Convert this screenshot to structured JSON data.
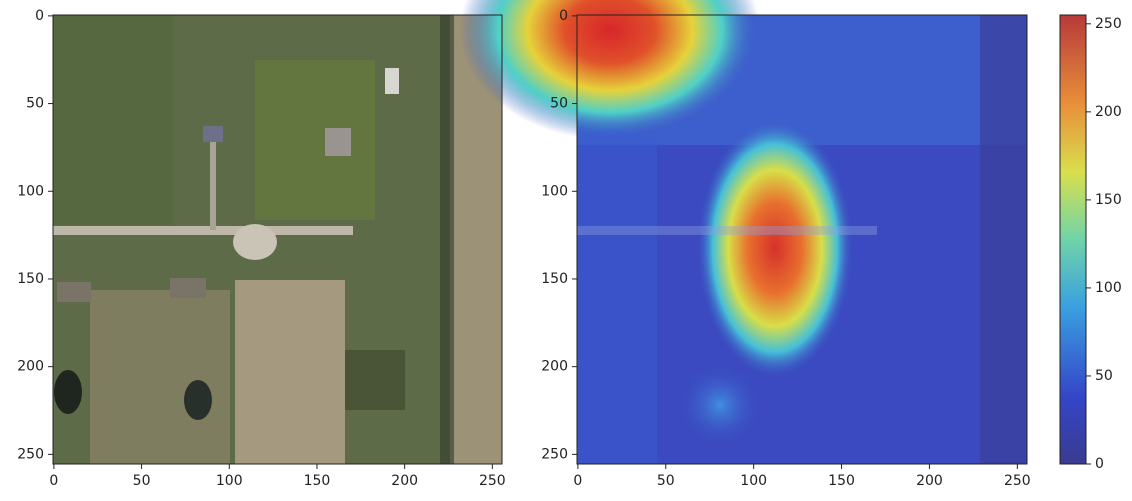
{
  "chart_data": [
    {
      "type": "image",
      "xlim": [
        -0.5,
        255.5
      ],
      "ylim": [
        255.5,
        -0.5
      ],
      "xticks": [
        0,
        50,
        100,
        150,
        200,
        250
      ],
      "yticks": [
        0,
        50,
        100,
        150,
        200,
        250
      ]
    },
    {
      "type": "heatmap",
      "xlim": [
        -0.5,
        255.5
      ],
      "ylim": [
        255.5,
        -0.5
      ],
      "xticks": [
        0,
        50,
        100,
        150,
        200,
        250
      ],
      "yticks": [
        0,
        50,
        100,
        150,
        200,
        250
      ],
      "colorbar": {
        "lim": [
          0,
          255
        ],
        "ticks": [
          0,
          50,
          100,
          150,
          200,
          250
        ]
      }
    }
  ]
}
